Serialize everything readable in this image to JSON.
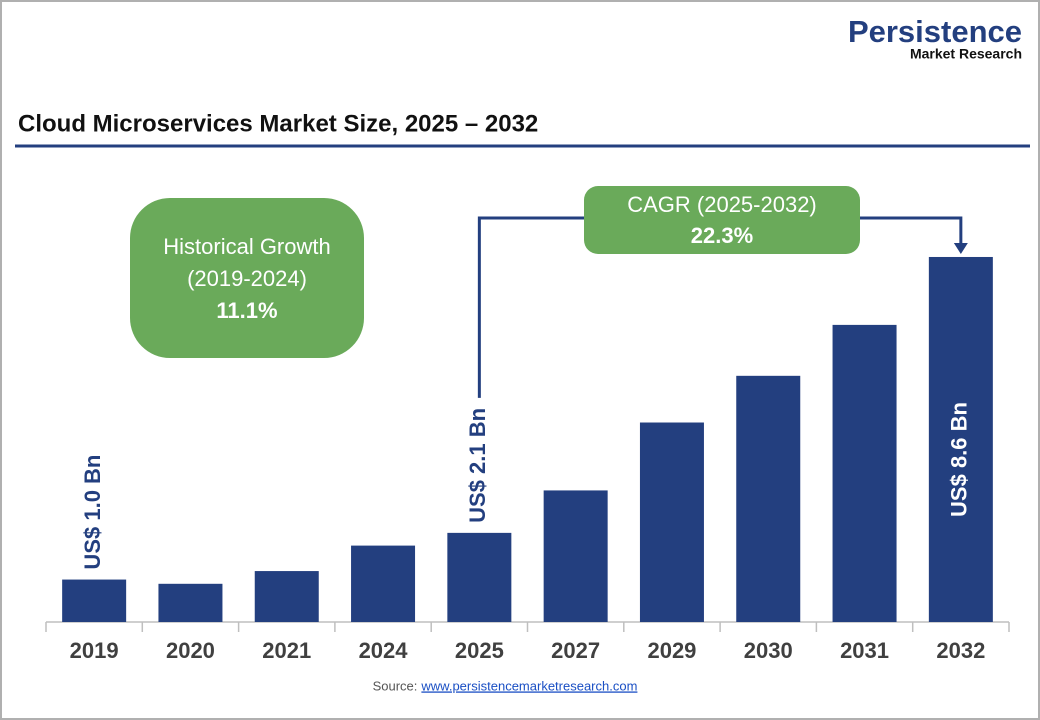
{
  "brand": {
    "name": "Persistence",
    "tagline": "Market Research"
  },
  "chart_data": {
    "type": "bar",
    "title": "Cloud Microservices Market Size, 2025 – 2032",
    "categories": [
      "2019",
      "2020",
      "2021",
      "2024",
      "2025",
      "2027",
      "2029",
      "2030",
      "2031",
      "2032"
    ],
    "values": [
      1.0,
      0.9,
      1.2,
      1.8,
      2.1,
      3.1,
      4.7,
      5.8,
      7.0,
      8.6
    ],
    "value_labels": [
      "US$ 1.0 Bn",
      null,
      null,
      null,
      "US$ 2.1 Bn",
      null,
      null,
      null,
      null,
      "US$ 8.6 Bn"
    ],
    "color": "#233f7f",
    "ylim": [
      0,
      9
    ],
    "annotations": [
      {
        "lines": [
          "Historical Growth",
          "(2019-2024)",
          "11.1%"
        ]
      },
      {
        "lines": [
          "CAGR (2025-2032)",
          "22.3%"
        ]
      }
    ],
    "source": {
      "label": "Source:",
      "url": "www.persistencemarketresearch.com"
    }
  }
}
